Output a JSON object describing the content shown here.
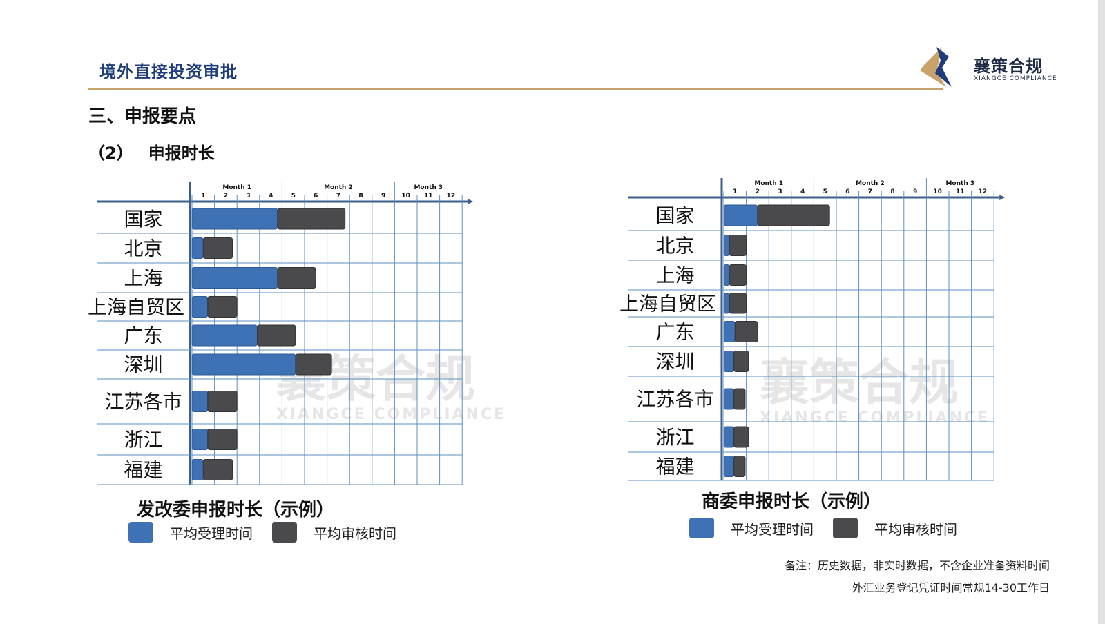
{
  "header": {
    "title": "境外直接投资审批"
  },
  "logo": {
    "name": "襄策合规",
    "subtitle": "XIANGCE COMPLIANCE"
  },
  "section": {
    "heading": "三、申报要点",
    "subheading_num": "（2）",
    "subheading": "申报时长"
  },
  "legend": {
    "accept_label": "平均受理时间",
    "review_label": "平均审核时间"
  },
  "colors": {
    "accept": "#3f72b5",
    "review": "#4a4a4c",
    "grid": "#5d8fc0",
    "axis": "#3b5f8a"
  },
  "notes": {
    "line1": "备注：历史数据，非实时数据，不含企业准备资料时间",
    "line2": "外汇业务登记凭证时间常规14-30工作日"
  },
  "watermark": {
    "name": "襄策合规",
    "subtitle": "XIANGCE COMPLIANCE"
  },
  "chart_data": [
    {
      "type": "bar",
      "title": "发改委申报时长（示例）",
      "month_labels": [
        "Month 1",
        "Month 2",
        "Month 3"
      ],
      "week_ticks": [
        "1",
        "2",
        "3",
        "4",
        "5",
        "6",
        "7",
        "8",
        "9",
        "10",
        "11",
        "12"
      ],
      "categories": [
        "国家",
        "北京",
        "上海",
        "上海自贸区",
        "广东",
        "深圳",
        "江苏各市",
        "浙江",
        "福建"
      ],
      "series": [
        {
          "name": "平均受理时间",
          "start": [
            0,
            0,
            0,
            0,
            0,
            0,
            0,
            0,
            0
          ],
          "values": [
            3.8,
            0.5,
            3.8,
            0.7,
            2.9,
            4.6,
            0.7,
            0.7,
            0.5
          ]
        },
        {
          "name": "平均审核时间",
          "start": [
            3.8,
            0.5,
            3.8,
            0.7,
            2.9,
            4.6,
            0.7,
            0.7,
            0.5
          ],
          "values": [
            3.0,
            1.3,
            1.7,
            1.3,
            1.7,
            1.6,
            1.3,
            1.3,
            1.3
          ]
        }
      ],
      "xlim": [
        0,
        12
      ]
    },
    {
      "type": "bar",
      "title": "商委申报时长（示例）",
      "month_labels": [
        "Month 1",
        "Month 2",
        "Month 3"
      ],
      "week_ticks": [
        "1",
        "2",
        "3",
        "4",
        "5",
        "6",
        "7",
        "8",
        "9",
        "10",
        "11",
        "12"
      ],
      "categories": [
        "国家",
        "北京",
        "上海",
        "上海自贸区",
        "广东",
        "深圳",
        "江苏各市",
        "浙江",
        "福建"
      ],
      "series": [
        {
          "name": "平均受理时间",
          "start": [
            0,
            0,
            0,
            0,
            0,
            0,
            0,
            0,
            0
          ],
          "values": [
            1.5,
            0.25,
            0.25,
            0.25,
            0.5,
            0.45,
            0.45,
            0.45,
            0.45
          ]
        },
        {
          "name": "平均审核时间",
          "start": [
            1.5,
            0.25,
            0.25,
            0.25,
            0.5,
            0.45,
            0.45,
            0.45,
            0.45
          ],
          "values": [
            3.2,
            0.75,
            0.75,
            0.75,
            1.0,
            0.65,
            0.5,
            0.65,
            0.5
          ]
        }
      ],
      "xlim": [
        0,
        12
      ]
    }
  ]
}
